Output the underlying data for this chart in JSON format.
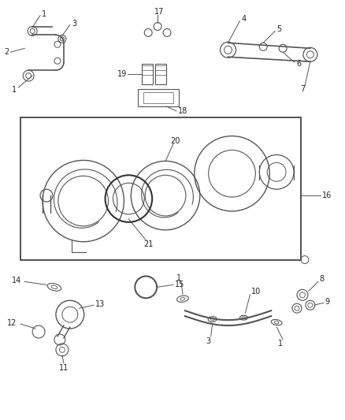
{
  "bg_color": "#ffffff",
  "fig_width": 4.38,
  "fig_height": 5.33,
  "dpi": 100,
  "lc": "#555555",
  "tc": "#222222",
  "fs": 7.0
}
